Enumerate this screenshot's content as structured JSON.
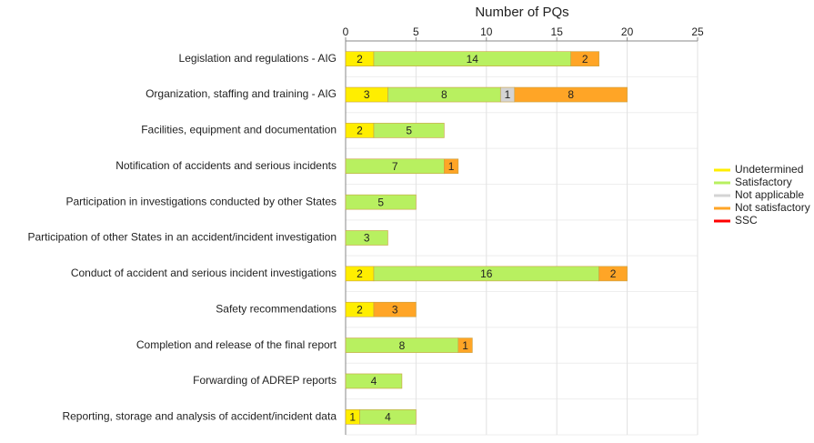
{
  "chart_data": {
    "type": "bar",
    "orientation": "horizontal",
    "stacked": true,
    "xlabel": "Number of PQs",
    "categories": [
      "Legislation and regulations - AIG",
      "Organization, staffing and training - AIG",
      "Facilities, equipment and documentation",
      "Notification of accidents and serious incidents",
      "Participation in investigations conducted by other States",
      "Participation of other States in an accident/incident investigation",
      "Conduct of accident and serious incident investigations",
      "Safety recommendations",
      "Completion and release of the final report",
      "Forwarding of ADREP reports",
      "Reporting, storage and analysis of accident/incident data"
    ],
    "series": [
      {
        "name": "Undetermined",
        "color": "#ffee00",
        "values": [
          2,
          3,
          2,
          null,
          null,
          null,
          2,
          2,
          null,
          null,
          1
        ]
      },
      {
        "name": "Satisfactory",
        "color": "#b8f060",
        "values": [
          14,
          8,
          5,
          7,
          5,
          3,
          16,
          null,
          8,
          4,
          4
        ]
      },
      {
        "name": "Not applicable",
        "color": "#d4d4d4",
        "values": [
          null,
          1,
          null,
          null,
          null,
          null,
          null,
          null,
          null,
          null,
          null
        ]
      },
      {
        "name": "Not satisfactory",
        "color": "#ffa526",
        "values": [
          2,
          8,
          null,
          1,
          null,
          null,
          2,
          3,
          1,
          null,
          null
        ]
      },
      {
        "name": "SSC",
        "color": "#ff0000",
        "values": [
          null,
          null,
          null,
          null,
          null,
          null,
          null,
          null,
          null,
          null,
          null
        ]
      }
    ],
    "xlim": [
      0,
      25
    ],
    "xticks": [
      0,
      5,
      10,
      15,
      20,
      25
    ],
    "grid": true,
    "legend": "right"
  }
}
